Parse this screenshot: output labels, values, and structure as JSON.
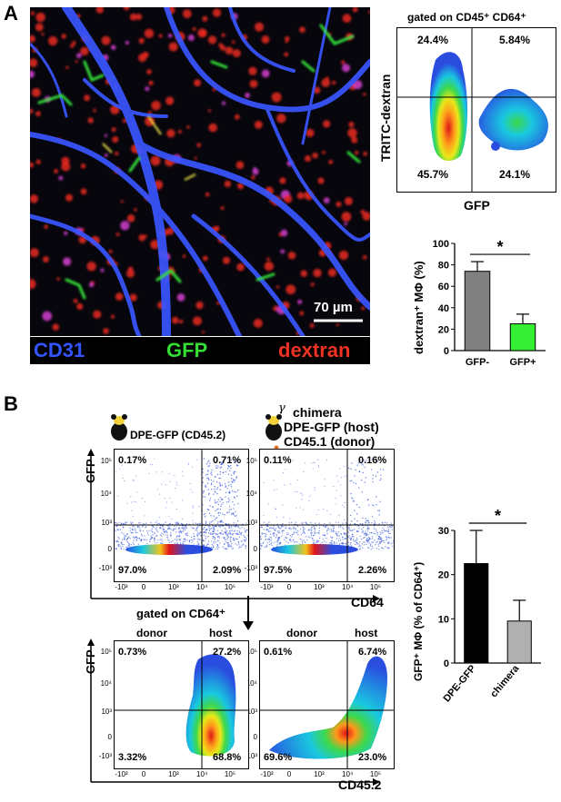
{
  "panelA": {
    "letter": "A",
    "micrograph": {
      "legend": {
        "left": "CD31",
        "mid": "GFP",
        "right": "dextran"
      },
      "colors": {
        "left": "#3355ff",
        "mid": "#33dd33",
        "right": "#ee3322"
      },
      "scalebar_label": "70 µm"
    },
    "flow": {
      "gate_title": "gated on CD45⁺ CD64⁺",
      "ylabel": "TRITC-dextran",
      "xlabel": "GFP",
      "quadrants": {
        "tl": "24.4%",
        "tr": "5.84%",
        "bl": "45.7%",
        "br": "24.1%"
      }
    },
    "bar": {
      "ylabel": "dextran⁺ MΦ (%)",
      "significance": "*"
    }
  },
  "panelB": {
    "letter": "B",
    "sample1_label": "DPE-GFP (CD45.2)",
    "sample2_lines": [
      "chimera",
      "DPE-GFP  (host)",
      "CD45.1  (donor)"
    ],
    "irradiation_symbol": "γ",
    "top_plots": {
      "ylabel": "GFP",
      "xlabel": "CD64",
      "p1": {
        "tl": "0.17%",
        "tr": "0.71%",
        "bl": "97.0%",
        "br": "2.09%"
      },
      "p2": {
        "tl": "0.11%",
        "tr": "0.16%",
        "bl": "97.5%",
        "br": "2.26%"
      }
    },
    "gate_label": "gated on CD64⁺",
    "bottom_plots": {
      "ylabel": "GFP",
      "xlabel": "CD45.2",
      "col_donor": "donor",
      "col_host": "host",
      "p1": {
        "tl": "0.73%",
        "tr": "27.2%",
        "bl": "3.32%",
        "br": "68.8%"
      },
      "p2": {
        "tl": "0.61%",
        "tr": "6.74%",
        "bl": "69.6%",
        "br": "23.0%"
      }
    },
    "axis_ticks": {
      "y": [
        "10⁵",
        "10⁴",
        "10³",
        "0",
        "-10³"
      ],
      "x": [
        "-10³",
        "0",
        "10³",
        "10⁴",
        "10⁵"
      ]
    },
    "bar": {
      "ylabel": "GFP⁺ MΦ (% of CD64⁺)",
      "significance": "*"
    }
  },
  "chart_data": [
    {
      "type": "bar",
      "categories": [
        "GFP-",
        "GFP+"
      ],
      "values": [
        74,
        25
      ],
      "errors": [
        9,
        9
      ],
      "colors": [
        "#808080",
        "#33ee33"
      ],
      "ylabel": "dextran⁺ MΦ (%)",
      "ylim": [
        0,
        100
      ],
      "yticks": [
        "0",
        "20",
        "40",
        "60",
        "80",
        "100"
      ]
    },
    {
      "type": "bar",
      "categories": [
        "DPE-GFP",
        "chimera"
      ],
      "values": [
        22.5,
        9.5
      ],
      "errors": [
        7.5,
        4.7
      ],
      "colors": [
        "#000000",
        "#b0b0b0"
      ],
      "ylabel": "GFP⁺ MΦ (% of CD64⁺)",
      "ylim": [
        0,
        30
      ],
      "yticks": [
        "0",
        "10",
        "20",
        "30"
      ]
    }
  ]
}
